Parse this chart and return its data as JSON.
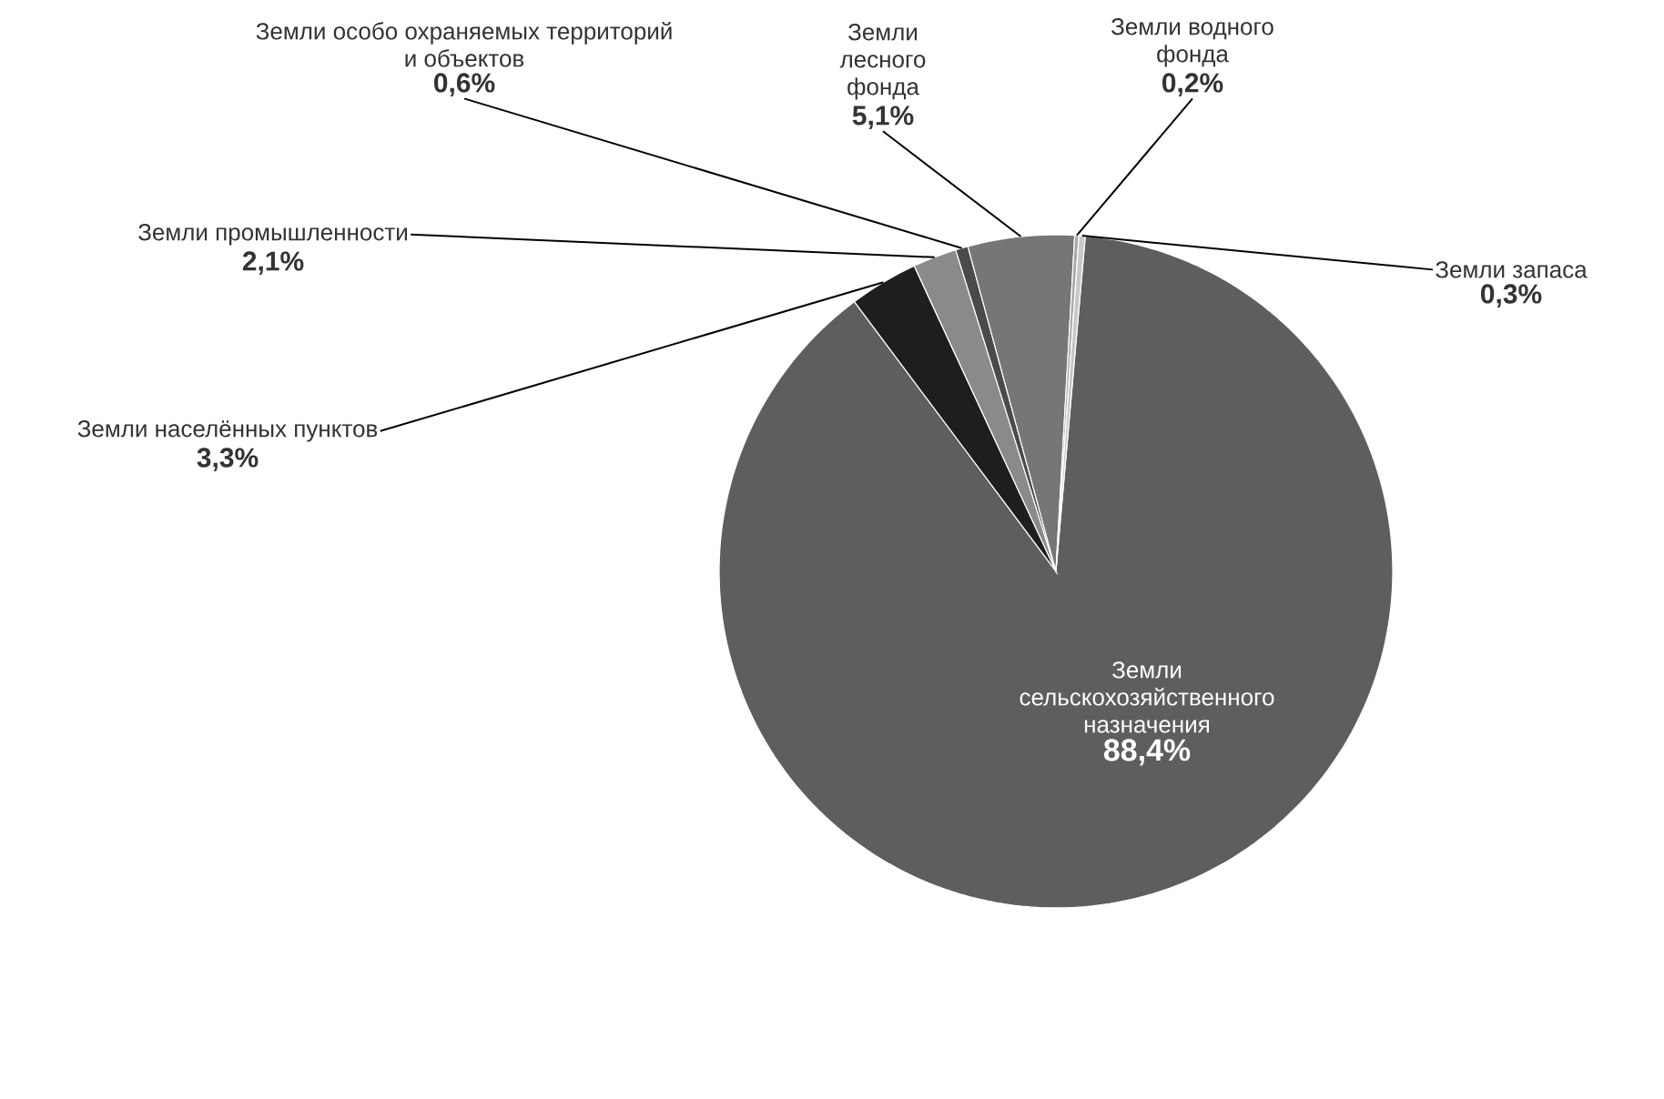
{
  "chart_data": {
    "type": "pie",
    "categories": [
      "Земли сельскохозяйственного назначения",
      "Земли населённых пунктов",
      "Земли промышленности",
      "Земли особо охраняемых территорий и объектов",
      "Земли лесного фонда",
      "Земли водного фонда",
      "Земли запаса"
    ],
    "values": [
      88.4,
      3.3,
      2.1,
      0.6,
      5.1,
      0.2,
      0.3
    ],
    "value_labels": [
      "88,4%",
      "3,3%",
      "2,1%",
      "0,6%",
      "5,1%",
      "0,2%",
      "0,3%"
    ],
    "colors": [
      "#5e5e5e",
      "#1e1e1e",
      "#8a8a8a",
      "#4a4a4a",
      "#767676",
      "#a8a8a8",
      "#c8c8c8"
    ]
  }
}
